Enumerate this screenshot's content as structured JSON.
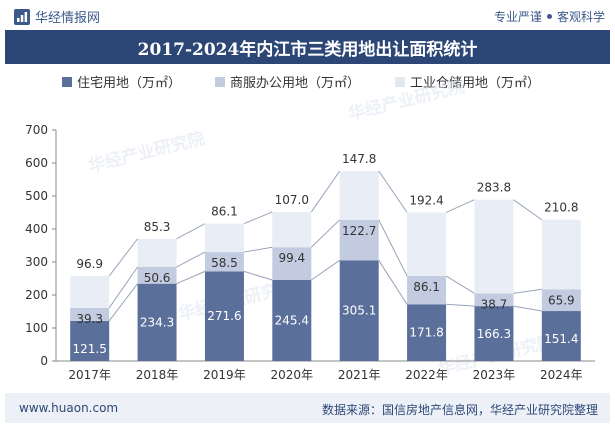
{
  "header": {
    "brand": "华经情报网",
    "slogan_left": "专业严谨",
    "slogan_right": "客观科学"
  },
  "title": "2017-2024年内江市三类用地出让面积统计",
  "watermark": "华经产业研究院",
  "footer": {
    "url": "www.huaon.com",
    "source": "数据来源：国信房地产信息网，华经产业研究院整理"
  },
  "colors": {
    "residential": "#5b6f9b",
    "commercial": "#c3cbe0",
    "industrial": "#e9edf5",
    "title_bg": "#2c4776"
  },
  "chart_data": {
    "type": "bar",
    "stacked": true,
    "categories": [
      "2017年",
      "2018年",
      "2019年",
      "2020年",
      "2021年",
      "2022年",
      "2023年",
      "2024年"
    ],
    "series": [
      {
        "name": "住宅用地（万㎡）",
        "values": [
          121.5,
          234.3,
          271.6,
          245.4,
          305.1,
          171.8,
          166.3,
          151.4
        ]
      },
      {
        "name": "商服办公用地（万㎡）",
        "values": [
          39.3,
          50.6,
          58.5,
          99.4,
          122.7,
          86.1,
          38.7,
          65.9
        ]
      },
      {
        "name": "工业仓储用地（万㎡）",
        "values": [
          96.9,
          85.3,
          86.1,
          107.0,
          147.8,
          192.4,
          283.8,
          210.8
        ]
      }
    ],
    "data_labels": [
      [
        "121.5",
        "234.3",
        "271.6",
        "245.4",
        "305.1",
        "171.8",
        "166.3",
        "151.4"
      ],
      [
        "39.3",
        "50.6",
        "58.5",
        "99.4",
        "122.7",
        "86.1",
        "38.7",
        "65.9"
      ],
      [
        "96.9",
        "85.3",
        "86.1",
        "107.0",
        "147.8",
        "192.4",
        "283.8",
        "210.8"
      ]
    ],
    "y_ticks": [
      "0",
      "100",
      "200",
      "300",
      "400",
      "500",
      "600",
      "700"
    ],
    "ylim": [
      0,
      700
    ],
    "legend_position": "top",
    "grid": false
  }
}
